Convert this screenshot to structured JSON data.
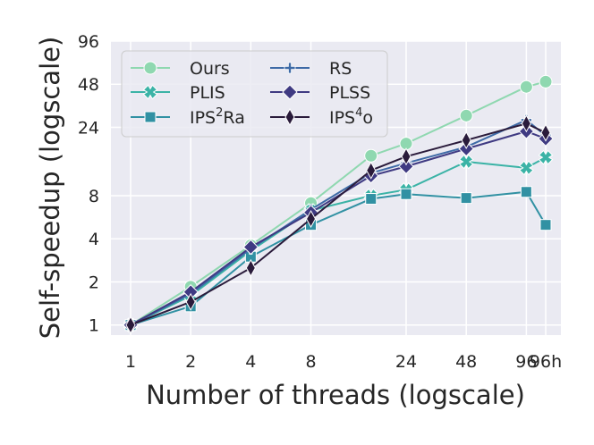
{
  "chart_data": {
    "type": "line",
    "xlabel": "Number of threads (logscale)",
    "ylabel": "Self-speedup (logscale)",
    "categories": [
      "1",
      "2",
      "4",
      "8",
      "24",
      "48",
      "96",
      "96h"
    ],
    "yticks": [
      1,
      2,
      4,
      8,
      24,
      48,
      96
    ],
    "ylim": [
      0.85,
      96
    ],
    "grid": true,
    "legend_position": "top-left",
    "series": [
      {
        "name": "Ours",
        "legend_label": "Ours",
        "color": "#8fd8b0",
        "marker": "circle",
        "x": [
          1,
          2,
          4,
          8,
          16,
          24,
          48,
          96,
          120
        ],
        "values": [
          1,
          1.85,
          3.6,
          7.1,
          15.2,
          18.5,
          29,
          46,
          50
        ]
      },
      {
        "name": "PLIS",
        "legend_label": "PLIS",
        "color": "#3bb3a6",
        "marker": "x",
        "x": [
          1,
          2,
          4,
          8,
          16,
          24,
          48,
          96,
          120
        ],
        "values": [
          1,
          1.6,
          3.3,
          6.3,
          8.0,
          8.8,
          13.8,
          12.5,
          14.8
        ]
      },
      {
        "name": "IPS2Ra",
        "legend_base": "IPS",
        "legend_sup": "2",
        "legend_tail": "Ra",
        "color": "#3191a3",
        "marker": "square",
        "x": [
          1,
          2,
          4,
          8,
          16,
          24,
          48,
          96,
          120
        ],
        "values": [
          1,
          1.35,
          3.0,
          5.0,
          7.6,
          8.2,
          7.7,
          8.5,
          5.0
        ]
      },
      {
        "name": "RS",
        "legend_label": "RS",
        "color": "#3e6aa6",
        "marker": "plus",
        "x": [
          1,
          2,
          4,
          8,
          16,
          24,
          48,
          96,
          120
        ],
        "values": [
          1,
          1.65,
          3.4,
          6.4,
          11.5,
          13.5,
          17.5,
          27,
          21
        ]
      },
      {
        "name": "PLSS",
        "legend_label": "PLSS",
        "color": "#3f3a82",
        "marker": "diamond",
        "x": [
          1,
          2,
          4,
          8,
          16,
          24,
          48,
          96,
          120
        ],
        "values": [
          1,
          1.7,
          3.5,
          6.1,
          11.0,
          12.8,
          17.0,
          22.5,
          20
        ]
      },
      {
        "name": "IPS4o",
        "legend_base": "IPS",
        "legend_sup": "4",
        "legend_tail": "o",
        "color": "#2a1b3b",
        "marker": "thin-diamond",
        "x": [
          1,
          2,
          4,
          8,
          16,
          24,
          48,
          96,
          120
        ],
        "values": [
          1,
          1.45,
          2.5,
          5.5,
          12.0,
          15.0,
          19.5,
          25.5,
          22
        ]
      }
    ],
    "x_positions": {
      "1": 1,
      "2": 2,
      "4": 4,
      "8": 8,
      "24": 24,
      "48": 48,
      "96": 96,
      "96h": 120
    }
  }
}
